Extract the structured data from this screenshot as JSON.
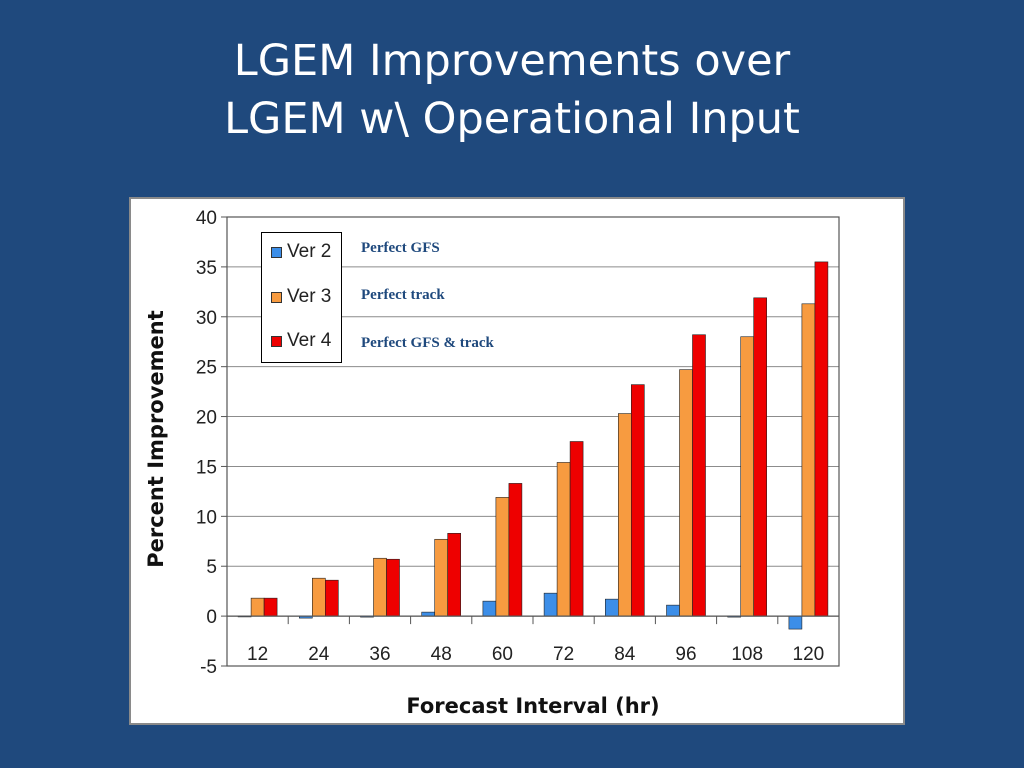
{
  "slide": {
    "title_line1": "LGEM Improvements over",
    "title_line2": "LGEM w\\ Operational Input"
  },
  "chart_data": {
    "type": "bar",
    "title": "",
    "xlabel": "Forecast Interval (hr)",
    "ylabel": "Percent Improvement",
    "ylim": [
      -5,
      40
    ],
    "yticks": [
      -5,
      0,
      5,
      10,
      15,
      20,
      25,
      30,
      35,
      40
    ],
    "grid": true,
    "legend_position": "top-left",
    "categories": [
      "12",
      "24",
      "36",
      "48",
      "60",
      "72",
      "84",
      "96",
      "108",
      "120"
    ],
    "series": [
      {
        "name": "Ver 2",
        "color": "#3c8ee8",
        "values": [
          0,
          -0.2,
          -0.1,
          0.4,
          1.5,
          2.3,
          1.7,
          1.1,
          -0.1,
          -1.3
        ]
      },
      {
        "name": "Ver 3",
        "color": "#f79b40",
        "values": [
          1.8,
          3.8,
          5.8,
          7.7,
          11.9,
          15.4,
          20.3,
          24.7,
          28.0,
          31.3
        ]
      },
      {
        "name": "Ver 4",
        "color": "#ee0000",
        "values": [
          1.8,
          3.6,
          5.7,
          8.3,
          13.3,
          17.5,
          23.2,
          28.2,
          31.9,
          35.5
        ]
      }
    ],
    "annotations": [
      "Perfect GFS",
      "Perfect track",
      "Perfect GFS & track"
    ]
  }
}
